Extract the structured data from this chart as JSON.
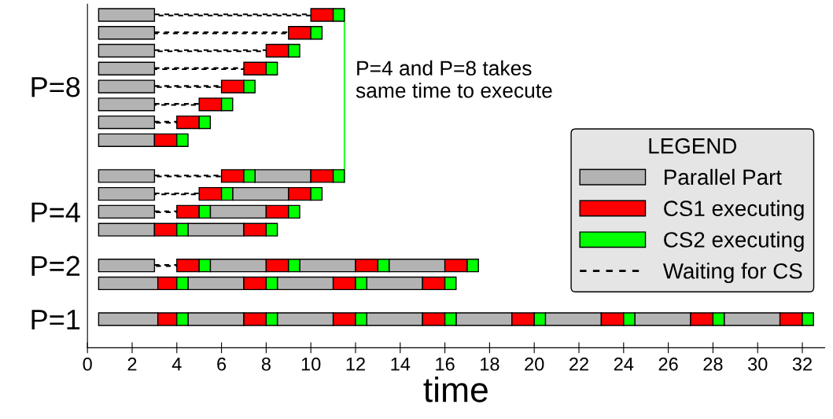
{
  "chart_data": {
    "type": "bar",
    "orientation": "horizontal",
    "xlabel": "time",
    "legend_title": "LEGEND",
    "legend": "right",
    "grid": false,
    "categories": [
      null,
      null,
      null,
      null,
      "P=8",
      null,
      null,
      null,
      null,
      null,
      null,
      "P=4",
      null,
      null,
      "P=2",
      null,
      null,
      "P=1"
    ],
    "xlim": [
      0,
      33
    ],
    "xticks": [
      0,
      2,
      4,
      6,
      8,
      10,
      12,
      14,
      16,
      18,
      20,
      22,
      24,
      26,
      28,
      30,
      32
    ],
    "ref_lines": [
      {
        "axis": "x",
        "value": 11.5,
        "color": "#00ff00"
      }
    ],
    "annotations": [
      "P=4 and P=8 takes\nsame time to execute"
    ],
    "series": [
      {
        "name": "Parallel Part",
        "type": "bar",
        "color": "#b3b3b3",
        "values": [
          2.5,
          2.5,
          2.5,
          2.5,
          2.5,
          2.5,
          2.5,
          2.5,
          null,
          2.5,
          2.5,
          2.5,
          2.5,
          null,
          2.5,
          2.65,
          null,
          2.65
        ],
        "base": [
          0.5,
          0.5,
          0.5,
          0.5,
          0.5,
          0.5,
          0.5,
          0.5,
          null,
          0.5,
          0.5,
          0.5,
          0.5,
          null,
          0.5,
          0.5,
          null,
          0.5
        ]
      },
      {
        "type": "bar",
        "color": "#b3b3b3",
        "values": [
          null,
          null,
          null,
          null,
          null,
          null,
          null,
          null,
          null,
          2.5,
          2.5,
          2.5,
          2.5,
          null,
          2.5,
          2.5,
          null,
          2.5
        ],
        "base": [
          null,
          null,
          null,
          null,
          null,
          null,
          null,
          null,
          null,
          7.5,
          6.5,
          5.5,
          4.5,
          null,
          5.5,
          4.5,
          null,
          4.5
        ]
      },
      {
        "type": "bar",
        "color": "#b3b3b3",
        "values": [
          null,
          null,
          null,
          null,
          null,
          null,
          null,
          null,
          null,
          null,
          null,
          null,
          null,
          null,
          2.5,
          2.5,
          null,
          2.5
        ],
        "base": [
          null,
          null,
          null,
          null,
          null,
          null,
          null,
          null,
          null,
          null,
          null,
          null,
          null,
          null,
          9.5,
          8.5,
          null,
          8.5
        ]
      },
      {
        "type": "bar",
        "color": "#b3b3b3",
        "values": [
          null,
          null,
          null,
          null,
          null,
          null,
          null,
          null,
          null,
          null,
          null,
          null,
          null,
          null,
          2.5,
          2.5,
          null,
          2.5
        ],
        "base": [
          null,
          null,
          null,
          null,
          null,
          null,
          null,
          null,
          null,
          null,
          null,
          null,
          null,
          null,
          13.5,
          12.5,
          null,
          12.5
        ]
      },
      {
        "type": "bar",
        "color": "#b3b3b3",
        "values": [
          null,
          null,
          null,
          null,
          null,
          null,
          null,
          null,
          null,
          null,
          null,
          null,
          null,
          null,
          null,
          null,
          null,
          2.5
        ],
        "base": [
          null,
          null,
          null,
          null,
          null,
          null,
          null,
          null,
          null,
          null,
          null,
          null,
          null,
          null,
          null,
          null,
          null,
          16.5
        ]
      },
      {
        "type": "bar",
        "color": "#b3b3b3",
        "values": [
          null,
          null,
          null,
          null,
          null,
          null,
          null,
          null,
          null,
          null,
          null,
          null,
          null,
          null,
          null,
          null,
          null,
          2.5
        ],
        "base": [
          null,
          null,
          null,
          null,
          null,
          null,
          null,
          null,
          null,
          null,
          null,
          null,
          null,
          null,
          null,
          null,
          null,
          20.5
        ]
      },
      {
        "type": "bar",
        "color": "#b3b3b3",
        "values": [
          null,
          null,
          null,
          null,
          null,
          null,
          null,
          null,
          null,
          null,
          null,
          null,
          null,
          null,
          null,
          null,
          null,
          2.5
        ],
        "base": [
          null,
          null,
          null,
          null,
          null,
          null,
          null,
          null,
          null,
          null,
          null,
          null,
          null,
          null,
          null,
          null,
          null,
          24.5
        ]
      },
      {
        "type": "bar",
        "color": "#b3b3b3",
        "values": [
          null,
          null,
          null,
          null,
          null,
          null,
          null,
          null,
          null,
          null,
          null,
          null,
          null,
          null,
          null,
          null,
          null,
          2.5
        ],
        "base": [
          null,
          null,
          null,
          null,
          null,
          null,
          null,
          null,
          null,
          null,
          null,
          null,
          null,
          null,
          null,
          null,
          null,
          28.5
        ]
      },
      {
        "name": "CS1 executing",
        "type": "bar",
        "color": "#ff0000",
        "values": [
          1,
          1,
          1,
          1,
          1,
          1,
          1,
          1,
          null,
          1,
          1,
          1,
          1,
          null,
          1,
          0.85,
          null,
          0.85
        ],
        "base": [
          10,
          9,
          8,
          7,
          6,
          5,
          4,
          3,
          null,
          6,
          5,
          4,
          3,
          null,
          4,
          3.15,
          null,
          3.15
        ]
      },
      {
        "type": "bar",
        "color": "#ff0000",
        "values": [
          null,
          null,
          null,
          null,
          null,
          null,
          null,
          null,
          null,
          1,
          1,
          1,
          1,
          null,
          1,
          1,
          null,
          1
        ],
        "base": [
          null,
          null,
          null,
          null,
          null,
          null,
          null,
          null,
          null,
          10,
          9,
          8,
          7,
          null,
          8,
          7,
          null,
          7
        ]
      },
      {
        "type": "bar",
        "color": "#ff0000",
        "values": [
          null,
          null,
          null,
          null,
          null,
          null,
          null,
          null,
          null,
          null,
          null,
          null,
          null,
          null,
          1,
          1,
          null,
          1
        ],
        "base": [
          null,
          null,
          null,
          null,
          null,
          null,
          null,
          null,
          null,
          null,
          null,
          null,
          null,
          null,
          12,
          11,
          null,
          11
        ]
      },
      {
        "type": "bar",
        "color": "#ff0000",
        "values": [
          null,
          null,
          null,
          null,
          null,
          null,
          null,
          null,
          null,
          null,
          null,
          null,
          null,
          null,
          1,
          1,
          null,
          1
        ],
        "base": [
          null,
          null,
          null,
          null,
          null,
          null,
          null,
          null,
          null,
          null,
          null,
          null,
          null,
          null,
          16,
          15,
          null,
          15
        ]
      },
      {
        "type": "bar",
        "color": "#ff0000",
        "values": [
          null,
          null,
          null,
          null,
          null,
          null,
          null,
          null,
          null,
          null,
          null,
          null,
          null,
          null,
          null,
          null,
          null,
          1
        ],
        "base": [
          null,
          null,
          null,
          null,
          null,
          null,
          null,
          null,
          null,
          null,
          null,
          null,
          null,
          null,
          null,
          null,
          null,
          19
        ]
      },
      {
        "type": "bar",
        "color": "#ff0000",
        "values": [
          null,
          null,
          null,
          null,
          null,
          null,
          null,
          null,
          null,
          null,
          null,
          null,
          null,
          null,
          null,
          null,
          null,
          1
        ],
        "base": [
          null,
          null,
          null,
          null,
          null,
          null,
          null,
          null,
          null,
          null,
          null,
          null,
          null,
          null,
          null,
          null,
          null,
          23
        ]
      },
      {
        "type": "bar",
        "color": "#ff0000",
        "values": [
          null,
          null,
          null,
          null,
          null,
          null,
          null,
          null,
          null,
          null,
          null,
          null,
          null,
          null,
          null,
          null,
          null,
          1
        ],
        "base": [
          null,
          null,
          null,
          null,
          null,
          null,
          null,
          null,
          null,
          null,
          null,
          null,
          null,
          null,
          null,
          null,
          null,
          27
        ]
      },
      {
        "type": "bar",
        "color": "#ff0000",
        "values": [
          null,
          null,
          null,
          null,
          null,
          null,
          null,
          null,
          null,
          null,
          null,
          null,
          null,
          null,
          null,
          null,
          null,
          1
        ],
        "base": [
          null,
          null,
          null,
          null,
          null,
          null,
          null,
          null,
          null,
          null,
          null,
          null,
          null,
          null,
          null,
          null,
          null,
          31
        ]
      },
      {
        "name": "CS2 executing",
        "type": "bar",
        "color": "#00ff00",
        "values": [
          0.5,
          0.5,
          0.5,
          0.5,
          0.5,
          0.5,
          0.5,
          0.5,
          null,
          0.5,
          0.5,
          0.5,
          0.5,
          null,
          0.5,
          0.5,
          null,
          0.5
        ],
        "base": [
          11,
          10,
          9,
          8,
          7,
          6,
          5,
          4,
          null,
          7,
          6,
          5,
          4,
          null,
          5,
          4,
          null,
          4
        ]
      },
      {
        "type": "bar",
        "color": "#00ff00",
        "values": [
          null,
          null,
          null,
          null,
          null,
          null,
          null,
          null,
          null,
          0.5,
          0.5,
          0.5,
          0.5,
          null,
          0.5,
          0.5,
          null,
          0.5
        ],
        "base": [
          null,
          null,
          null,
          null,
          null,
          null,
          null,
          null,
          null,
          11,
          10,
          9,
          8,
          null,
          9,
          8,
          null,
          8
        ]
      },
      {
        "type": "bar",
        "color": "#00ff00",
        "values": [
          null,
          null,
          null,
          null,
          null,
          null,
          null,
          null,
          null,
          null,
          null,
          null,
          null,
          null,
          0.5,
          0.5,
          null,
          0.5
        ],
        "base": [
          null,
          null,
          null,
          null,
          null,
          null,
          null,
          null,
          null,
          null,
          null,
          null,
          null,
          null,
          13,
          12,
          null,
          12
        ]
      },
      {
        "type": "bar",
        "color": "#00ff00",
        "values": [
          null,
          null,
          null,
          null,
          null,
          null,
          null,
          null,
          null,
          null,
          null,
          null,
          null,
          null,
          0.5,
          0.5,
          null,
          0.5
        ],
        "base": [
          null,
          null,
          null,
          null,
          null,
          null,
          null,
          null,
          null,
          null,
          null,
          null,
          null,
          null,
          17,
          16,
          null,
          16
        ]
      },
      {
        "type": "bar",
        "color": "#00ff00",
        "values": [
          null,
          null,
          null,
          null,
          null,
          null,
          null,
          null,
          null,
          null,
          null,
          null,
          null,
          null,
          null,
          null,
          null,
          0.5
        ],
        "base": [
          null,
          null,
          null,
          null,
          null,
          null,
          null,
          null,
          null,
          null,
          null,
          null,
          null,
          null,
          null,
          null,
          null,
          20
        ]
      },
      {
        "type": "bar",
        "color": "#00ff00",
        "values": [
          null,
          null,
          null,
          null,
          null,
          null,
          null,
          null,
          null,
          null,
          null,
          null,
          null,
          null,
          null,
          null,
          null,
          0.5
        ],
        "base": [
          null,
          null,
          null,
          null,
          null,
          null,
          null,
          null,
          null,
          null,
          null,
          null,
          null,
          null,
          null,
          null,
          null,
          24
        ]
      },
      {
        "type": "bar",
        "color": "#00ff00",
        "values": [
          null,
          null,
          null,
          null,
          null,
          null,
          null,
          null,
          null,
          null,
          null,
          null,
          null,
          null,
          null,
          null,
          null,
          0.5
        ],
        "base": [
          null,
          null,
          null,
          null,
          null,
          null,
          null,
          null,
          null,
          null,
          null,
          null,
          null,
          null,
          null,
          null,
          null,
          28
        ]
      },
      {
        "type": "bar",
        "color": "#00ff00",
        "values": [
          null,
          null,
          null,
          null,
          null,
          null,
          null,
          null,
          null,
          null,
          null,
          null,
          null,
          null,
          null,
          null,
          null,
          0.5
        ],
        "base": [
          null,
          null,
          null,
          null,
          null,
          null,
          null,
          null,
          null,
          null,
          null,
          null,
          null,
          null,
          null,
          null,
          null,
          32
        ]
      },
      {
        "name": "Waiting for CS",
        "line_style": "dashed",
        "color": "#000000",
        "values": [
          7,
          6,
          5,
          4,
          3,
          2,
          1,
          null,
          null,
          3,
          2,
          1,
          null,
          null,
          1,
          null,
          null,
          null
        ],
        "base": [
          3,
          3,
          3,
          3,
          3,
          3,
          3,
          null,
          null,
          3,
          3,
          3,
          null,
          null,
          3,
          null,
          null,
          null
        ]
      }
    ]
  }
}
